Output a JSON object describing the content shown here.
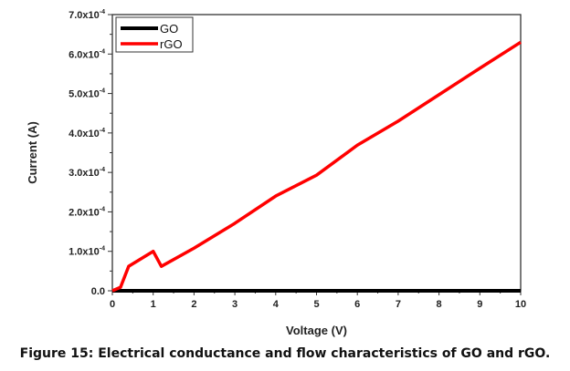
{
  "caption": "Figure 15: Electrical conductance and flow characteristics of GO and rGO.",
  "chart_data": {
    "type": "line",
    "title": "",
    "xlabel": "Voltage (V)",
    "ylabel": "Current (A)",
    "xlim": [
      0,
      10
    ],
    "ylim": [
      0,
      0.0007
    ],
    "grid": false,
    "legend_position": "top-left",
    "x_ticks": [
      0,
      1,
      2,
      3,
      4,
      5,
      6,
      7,
      8,
      9,
      10
    ],
    "x_tick_labels": [
      "0",
      "1",
      "2",
      "3",
      "4",
      "5",
      "6",
      "7",
      "8",
      "9",
      "10"
    ],
    "y_ticks": [
      0,
      0.0001,
      0.0002,
      0.0003,
      0.0004,
      0.0005,
      0.0006,
      0.0007
    ],
    "y_tick_labels": [
      {
        "mantissa": "0.0",
        "exp": ""
      },
      {
        "mantissa": "1.0x10",
        "exp": "-4"
      },
      {
        "mantissa": "2.0x10",
        "exp": "-4"
      },
      {
        "mantissa": "3.0x10",
        "exp": "-4"
      },
      {
        "mantissa": "4.0x10",
        "exp": "-4"
      },
      {
        "mantissa": "5.0x10",
        "exp": "-4"
      },
      {
        "mantissa": "6.0x10",
        "exp": "-4"
      },
      {
        "mantissa": "7.0x10",
        "exp": "-4"
      }
    ],
    "series": [
      {
        "name": "GO",
        "color": "#000000",
        "x": [
          0,
          1,
          2,
          3,
          4,
          5,
          6,
          7,
          8,
          9,
          10
        ],
        "y": [
          0,
          0,
          0,
          0,
          0,
          0,
          0,
          0,
          0,
          0,
          0
        ]
      },
      {
        "name": "rGO",
        "color": "#ff0000",
        "x": [
          0,
          0.2,
          0.4,
          1.0,
          1.2,
          2,
          3,
          4,
          5,
          6,
          7,
          8,
          9,
          10
        ],
        "y": [
          0,
          9e-06,
          6.2e-05,
          0.0001,
          6.2e-05,
          0.000108,
          0.000171,
          0.00024,
          0.000293,
          0.000369,
          0.00043,
          0.000497,
          0.000564,
          0.00063
        ]
      }
    ]
  }
}
